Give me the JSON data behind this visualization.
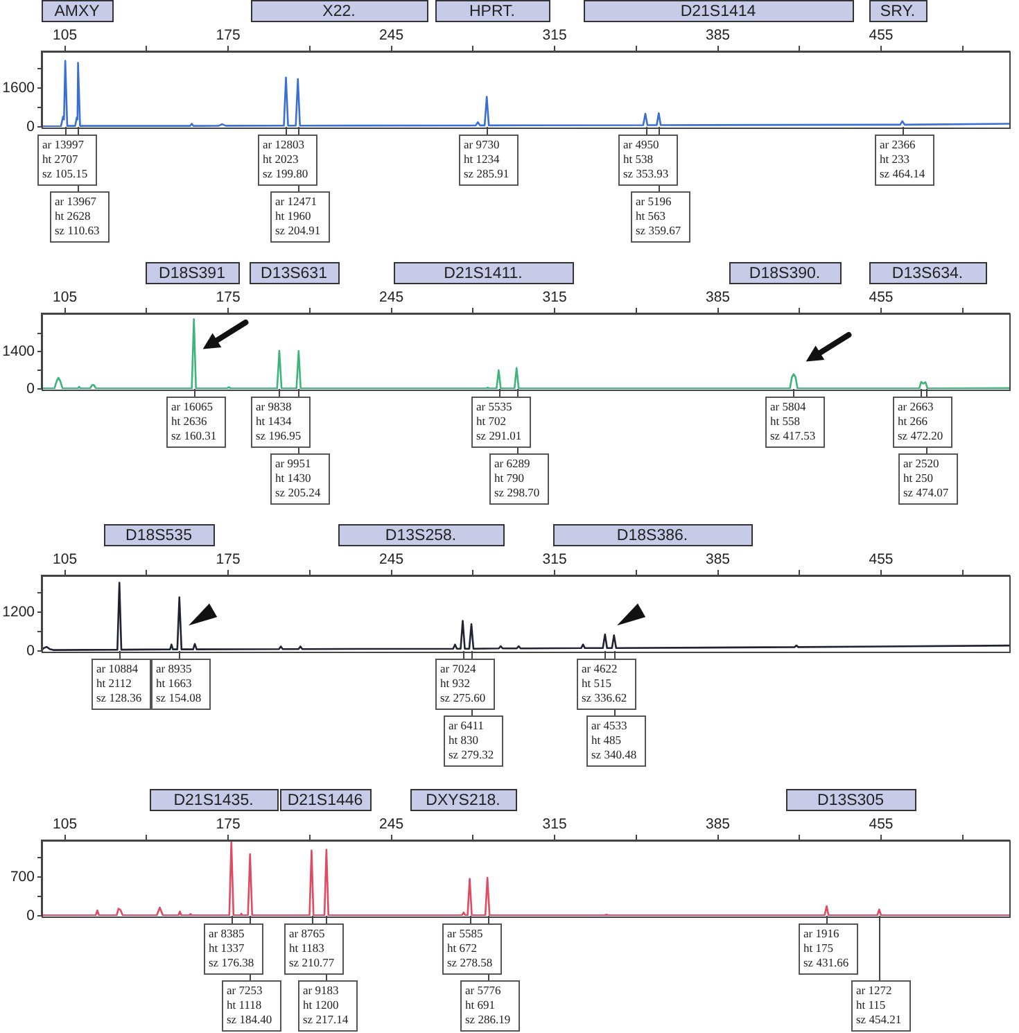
{
  "chart_data": [
    {
      "type": "line",
      "x": [
        95,
        103.3,
        104.2,
        104.6,
        105.15,
        106.0,
        109.4,
        110.1,
        110.4,
        110.63,
        111.5,
        158.7,
        159.4,
        160.1,
        171.0,
        172.4,
        174.0,
        198.9,
        199.8,
        200.7,
        204.0,
        204.91,
        205.8,
        281.2,
        282.1,
        283.0,
        285.0,
        285.91,
        286.8,
        353.0,
        353.93,
        354.8,
        358.8,
        359.67,
        360.5,
        463.2,
        464.14,
        465.1,
        510
      ],
      "values": [
        20,
        30,
        420,
        300,
        2707,
        40,
        40,
        390,
        300,
        2628,
        40,
        40,
        130,
        40,
        45,
        110,
        45,
        50,
        2023,
        50,
        50,
        1960,
        50,
        60,
        190,
        60,
        60,
        1234,
        60,
        70,
        538,
        70,
        70,
        563,
        70,
        90,
        233,
        90,
        130
      ],
      "color": "#3a6fd6",
      "xlim": [
        95,
        510
      ],
      "xticks": [
        105,
        {
          "value": 140,
          "label": null
        },
        175,
        {
          "value": 210,
          "label": null
        },
        245,
        {
          "value": 280,
          "label": null
        },
        315,
        {
          "value": 350,
          "label": null
        },
        385,
        {
          "value": 420,
          "label": null
        },
        455,
        {
          "value": 490,
          "label": null
        }
      ],
      "ylim": [
        0,
        3100
      ],
      "yticks": [
        0,
        {
          "value": 800,
          "label": null
        },
        1600,
        {
          "value": 2400,
          "label": null
        }
      ],
      "annotations": [
        "AMXY",
        "X22.",
        "HPRT.",
        "D21S1414",
        "SRY.",
        {
          "text": "ar 13997\nht 2707\nsz 105.15",
          "x": 105.15
        },
        {
          "text": "ar 13967\nht 2628\nsz 110.63",
          "x": 110.63
        },
        {
          "text": "ar 12803\nht 2023\nsz 199.80",
          "x": 199.8
        },
        {
          "text": "ar 12471\nht 1960\nsz 204.91",
          "x": 204.91
        },
        {
          "text": "ar 9730\nht 1234\nsz 285.91",
          "x": 285.91
        },
        {
          "text": "ar 4950\nht 538\nsz 353.93",
          "x": 353.93
        },
        {
          "text": "ar 5196\nht 563\nsz 359.67",
          "x": 359.67
        },
        {
          "text": "ar 2366\nht 233\nsz 464.14",
          "x": 464.14
        }
      ]
    },
    {
      "type": "line",
      "x": [
        95,
        100.5,
        101.5,
        102.2,
        103.0,
        104.0,
        110.5,
        111.1,
        111.7,
        115.8,
        116.6,
        117.4,
        118.3,
        159.4,
        160.31,
        161.2,
        174.5,
        175.3,
        176.1,
        196.0,
        196.95,
        197.9,
        204.3,
        205.24,
        206.1,
        285.6,
        286.3,
        287.0,
        290.1,
        291.01,
        291.9,
        297.8,
        298.7,
        299.6,
        415.9,
        416.8,
        417.53,
        418.3,
        419.2,
        471.4,
        472.2,
        473.1,
        474.07,
        474.9,
        510
      ],
      "values": [
        20,
        20,
        300,
        420,
        300,
        20,
        20,
        80,
        20,
        20,
        140,
        150,
        20,
        20,
        2636,
        20,
        20,
        70,
        20,
        20,
        1434,
        20,
        20,
        1430,
        20,
        20,
        50,
        20,
        20,
        702,
        20,
        20,
        790,
        20,
        20,
        450,
        558,
        450,
        20,
        20,
        266,
        200,
        250,
        20,
        30
      ],
      "color": "#3db57a",
      "xlim": [
        95,
        510
      ],
      "xticks": [
        105,
        {
          "value": 140,
          "label": null
        },
        175,
        {
          "value": 210,
          "label": null
        },
        245,
        {
          "value": 280,
          "label": null
        },
        315,
        {
          "value": 350,
          "label": null
        },
        385,
        {
          "value": 420,
          "label": null
        },
        455,
        {
          "value": 490,
          "label": null
        }
      ],
      "ylim": [
        0,
        2850
      ],
      "yticks": [
        0,
        {
          "value": 700,
          "label": null
        },
        1400,
        {
          "value": 2100,
          "label": null
        }
      ],
      "annotations": [
        "D18S391",
        "D13S631",
        "D21S1411.",
        "D18S390.",
        "D13S634.",
        {
          "text": "ar 16065\nht 2636\nsz 160.31",
          "x": 160.31
        },
        {
          "text": "ar 9838\nht 1434\nsz 196.95",
          "x": 196.95
        },
        {
          "text": "ar 9951\nht 1430\nsz 205.24",
          "x": 205.24
        },
        {
          "text": "ar 5535\nht 702\nsz 291.01",
          "x": 291.01
        },
        {
          "text": "ar 6289\nht 790\nsz 298.70",
          "x": 298.7
        },
        {
          "text": "ar 5804\nht 558\nsz 417.53",
          "x": 417.53
        },
        {
          "text": "ar 2663\nht 266\nsz 472.20",
          "x": 472.2
        },
        {
          "text": "ar 2520\nht 250\nsz 474.07",
          "x": 474.07
        }
      ]
    },
    {
      "type": "line",
      "x": [
        95,
        96.2,
        97.2,
        98.5,
        100,
        127.5,
        128.36,
        129.2,
        150.1,
        150.7,
        151.3,
        153.2,
        154.08,
        155.0,
        160.0,
        160.7,
        161.5,
        196.8,
        197.6,
        198.4,
        205.2,
        206.0,
        206.8,
        271.5,
        272.3,
        273.1,
        274.7,
        275.6,
        276.5,
        278.4,
        279.32,
        280.2,
        291.1,
        291.9,
        292.7,
        298.8,
        299.6,
        300.4,
        326.4,
        327.2,
        328.0,
        335.7,
        336.62,
        337.5,
        339.6,
        340.48,
        341.4,
        417.9,
        418.7,
        419.5,
        510
      ],
      "values": [
        30,
        100,
        130,
        60,
        30,
        40,
        2112,
        40,
        50,
        200,
        50,
        50,
        1663,
        50,
        50,
        220,
        50,
        60,
        140,
        60,
        60,
        140,
        60,
        70,
        200,
        70,
        70,
        932,
        70,
        70,
        830,
        70,
        80,
        150,
        80,
        80,
        150,
        80,
        90,
        200,
        90,
        90,
        515,
        90,
        90,
        485,
        90,
        120,
        170,
        120,
        170
      ],
      "color": "#1e2233",
      "xlim": [
        95,
        510
      ],
      "xticks": [
        105,
        {
          "value": 140,
          "label": null
        },
        175,
        {
          "value": 210,
          "label": null
        },
        245,
        {
          "value": 280,
          "label": null
        },
        315,
        {
          "value": 350,
          "label": null
        },
        385,
        {
          "value": 420,
          "label": null
        },
        455,
        {
          "value": 490,
          "label": null
        }
      ],
      "ylim": [
        0,
        2340
      ],
      "yticks": [
        0,
        {
          "value": 600,
          "label": null
        },
        1200,
        {
          "value": 1800,
          "label": null
        }
      ],
      "annotations": [
        "D18S535",
        "D13S258.",
        "D18S386.",
        {
          "text": "ar 10884\nht 2112\nsz 128.36",
          "x": 128.36
        },
        {
          "text": "ar 8935\nht 1663\nsz 154.08",
          "x": 154.08
        },
        {
          "text": "ar 7024\nht 932\nsz 275.60",
          "x": 275.6
        },
        {
          "text": "ar 6411\nht 830\nsz 279.32",
          "x": 279.32
        },
        {
          "text": "ar 4622\nht 515\nsz 336.62",
          "x": 336.62
        },
        {
          "text": "ar 4533\nht 485\nsz 340.48",
          "x": 340.48
        }
      ]
    },
    {
      "type": "line",
      "x": [
        95,
        118.2,
        118.9,
        119.6,
        127.2,
        128.0,
        128.8,
        129.8,
        144.4,
        145.7,
        147.0,
        153.7,
        154.3,
        154.9,
        158.3,
        158.7,
        159.1,
        175.5,
        176.38,
        177.3,
        180.1,
        180.6,
        181.1,
        183.5,
        184.4,
        185.3,
        209.9,
        210.77,
        211.6,
        216.3,
        217.14,
        218.0,
        275.3,
        276.0,
        276.7,
        277.7,
        278.58,
        279.5,
        285.3,
        286.19,
        287.1,
        336.5,
        337.0,
        337.5,
        430.8,
        431.66,
        432.5,
        453.4,
        454.21,
        455.0,
        510
      ],
      "values": [
        10,
        10,
        100,
        10,
        10,
        130,
        110,
        10,
        10,
        150,
        10,
        10,
        80,
        10,
        10,
        30,
        10,
        10,
        1337,
        10,
        10,
        40,
        10,
        10,
        1118,
        10,
        10,
        1183,
        10,
        10,
        1200,
        10,
        10,
        60,
        10,
        10,
        672,
        10,
        10,
        691,
        10,
        10,
        20,
        10,
        10,
        175,
        10,
        10,
        115,
        10,
        10
      ],
      "color": "#e04a63",
      "xlim": [
        95,
        510
      ],
      "xticks": [
        105,
        {
          "value": 140,
          "label": null
        },
        175,
        {
          "value": 210,
          "label": null
        },
        245,
        {
          "value": 280,
          "label": null
        },
        315,
        {
          "value": 350,
          "label": null
        },
        385,
        {
          "value": 420,
          "label": null
        },
        455,
        {
          "value": 490,
          "label": null
        }
      ],
      "ylim": [
        0,
        1370
      ],
      "yticks": [
        0,
        {
          "value": 350,
          "label": null
        },
        700,
        {
          "value": 1050,
          "label": null
        }
      ],
      "annotations": [
        "D21S1435.",
        "D21S1446",
        "DXYS218.",
        "D13S305",
        {
          "text": "ar 8385\nht 1337\nsz 176.38",
          "x": 176.38
        },
        {
          "text": "ar 7253\nht 1118\nsz 184.40",
          "x": 184.4
        },
        {
          "text": "ar 8765\nht 1183\nsz 210.77",
          "x": 210.77
        },
        {
          "text": "ar 9183\nht 1200\nsz 217.14",
          "x": 217.14
        },
        {
          "text": "ar 5585\nht 672\nsz 278.58",
          "x": 278.58
        },
        {
          "text": "ar 5776\nht 691\nsz 286.19",
          "x": 286.19
        },
        {
          "text": "ar 1916\nht 175\nsz 431.66",
          "x": 431.66
        },
        {
          "text": "ar 1272\nht 115\nsz 454.21",
          "x": 454.21
        }
      ]
    }
  ]
}
